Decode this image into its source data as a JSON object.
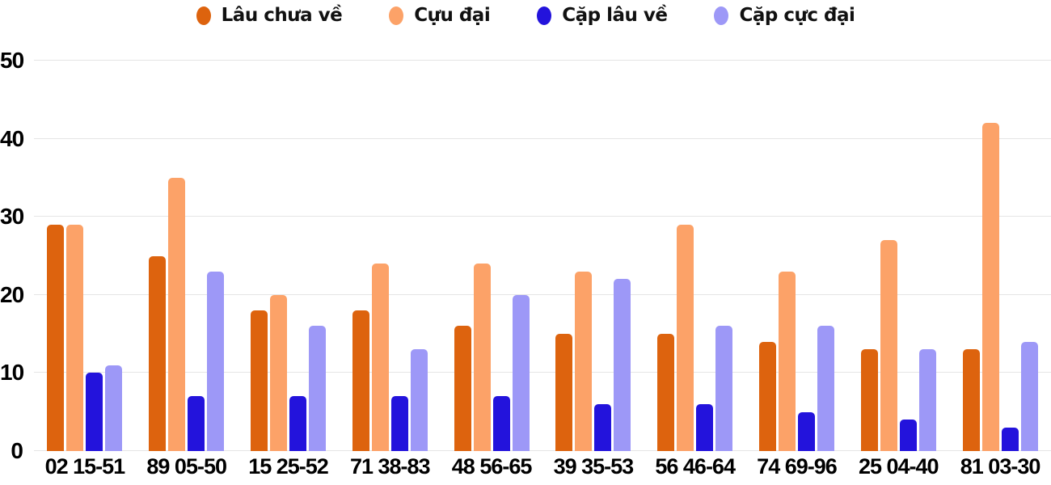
{
  "legend": {
    "items": [
      {
        "label": "Lâu chưa về",
        "color": "#dd630e"
      },
      {
        "label": "Cựu đại",
        "color": "#fca268"
      },
      {
        "label": "Cặp lâu về",
        "color": "#2313dc"
      },
      {
        "label": "Cặp cực đại",
        "color": "#9d98f7"
      }
    ]
  },
  "chart_data": {
    "type": "bar",
    "title": "",
    "xlabel": "",
    "ylabel": "",
    "categories": [
      "02 15-51",
      "89 05-50",
      "15 25-52",
      "71 38-83",
      "48 56-65",
      "39 35-53",
      "56 46-64",
      "74 69-96",
      "25 04-40",
      "81 03-30"
    ],
    "series": [
      {
        "name": "Lâu chưa về",
        "color": "#dd630e",
        "values": [
          29,
          25,
          18,
          18,
          16,
          15,
          15,
          14,
          13,
          13
        ]
      },
      {
        "name": "Cựu đại",
        "color": "#fca268",
        "values": [
          29,
          35,
          20,
          24,
          24,
          23,
          29,
          23,
          27,
          42
        ]
      },
      {
        "name": "Cặp lâu về",
        "color": "#2313dc",
        "values": [
          10,
          7,
          7,
          7,
          7,
          6,
          6,
          5,
          4,
          3
        ]
      },
      {
        "name": "Cặp cực đại",
        "color": "#9d98f7",
        "values": [
          11,
          23,
          16,
          13,
          20,
          22,
          16,
          16,
          13,
          14
        ]
      }
    ],
    "ylim": [
      0,
      50
    ],
    "yticks": [
      0,
      10,
      20,
      30,
      40,
      50
    ],
    "grid": true,
    "legend_position": "top"
  },
  "colors": {
    "grid": "#e5e5e5",
    "text": "#000000",
    "background": "#ffffff"
  }
}
